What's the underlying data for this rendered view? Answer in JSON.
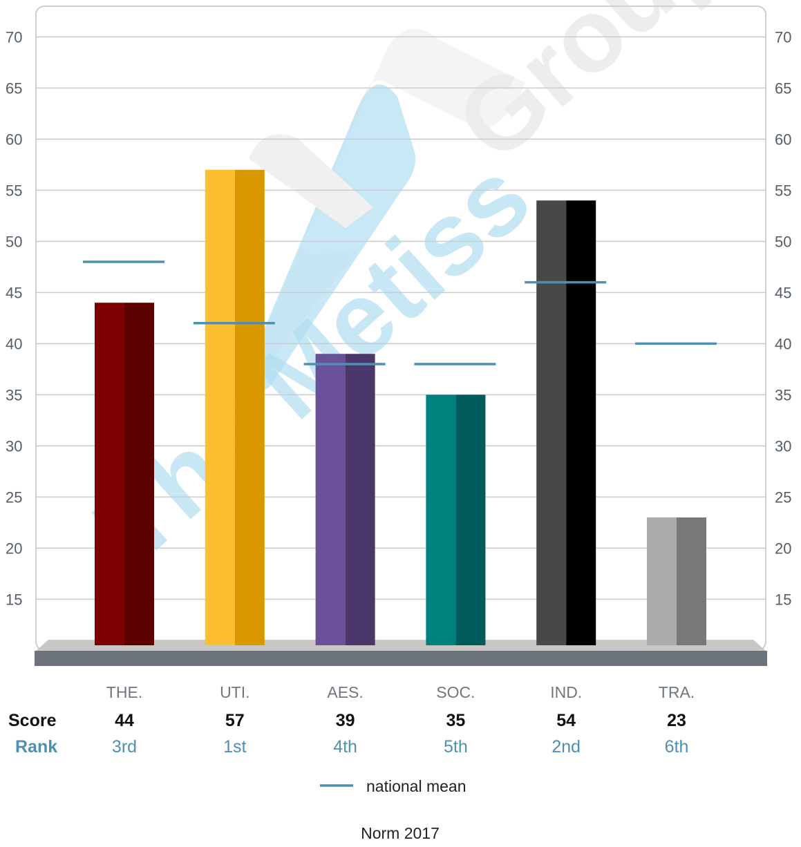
{
  "chart_data": {
    "type": "bar",
    "categories": [
      "THE.",
      "UTI.",
      "AES.",
      "SOC.",
      "IND.",
      "TRA."
    ],
    "values": [
      44,
      57,
      39,
      35,
      54,
      23
    ],
    "national_mean": [
      48,
      42,
      38,
      38,
      46,
      40
    ],
    "ranks": [
      "3rd",
      "1st",
      "4th",
      "5th",
      "2nd",
      "6th"
    ],
    "bar_colors": [
      [
        "#7e0000",
        "#5c0000"
      ],
      [
        "#fbbf30",
        "#d99700"
      ],
      [
        "#6b519a",
        "#4b3769"
      ],
      [
        "#008180",
        "#005c5c"
      ],
      [
        "#484848",
        "#000000"
      ],
      [
        "#ababab",
        "#797979"
      ]
    ],
    "mean_color": "#4f8fb0",
    "yticks": [
      15,
      20,
      25,
      30,
      35,
      40,
      45,
      50,
      55,
      60,
      65,
      70
    ],
    "ylim": [
      10.5,
      73
    ],
    "grid": true,
    "row_labels": {
      "score": "Score",
      "rank": "Rank"
    },
    "legend": {
      "label": "national mean",
      "placement": "bottom-center"
    },
    "footer": "Norm 2017",
    "watermark": "The Metiss Group"
  }
}
